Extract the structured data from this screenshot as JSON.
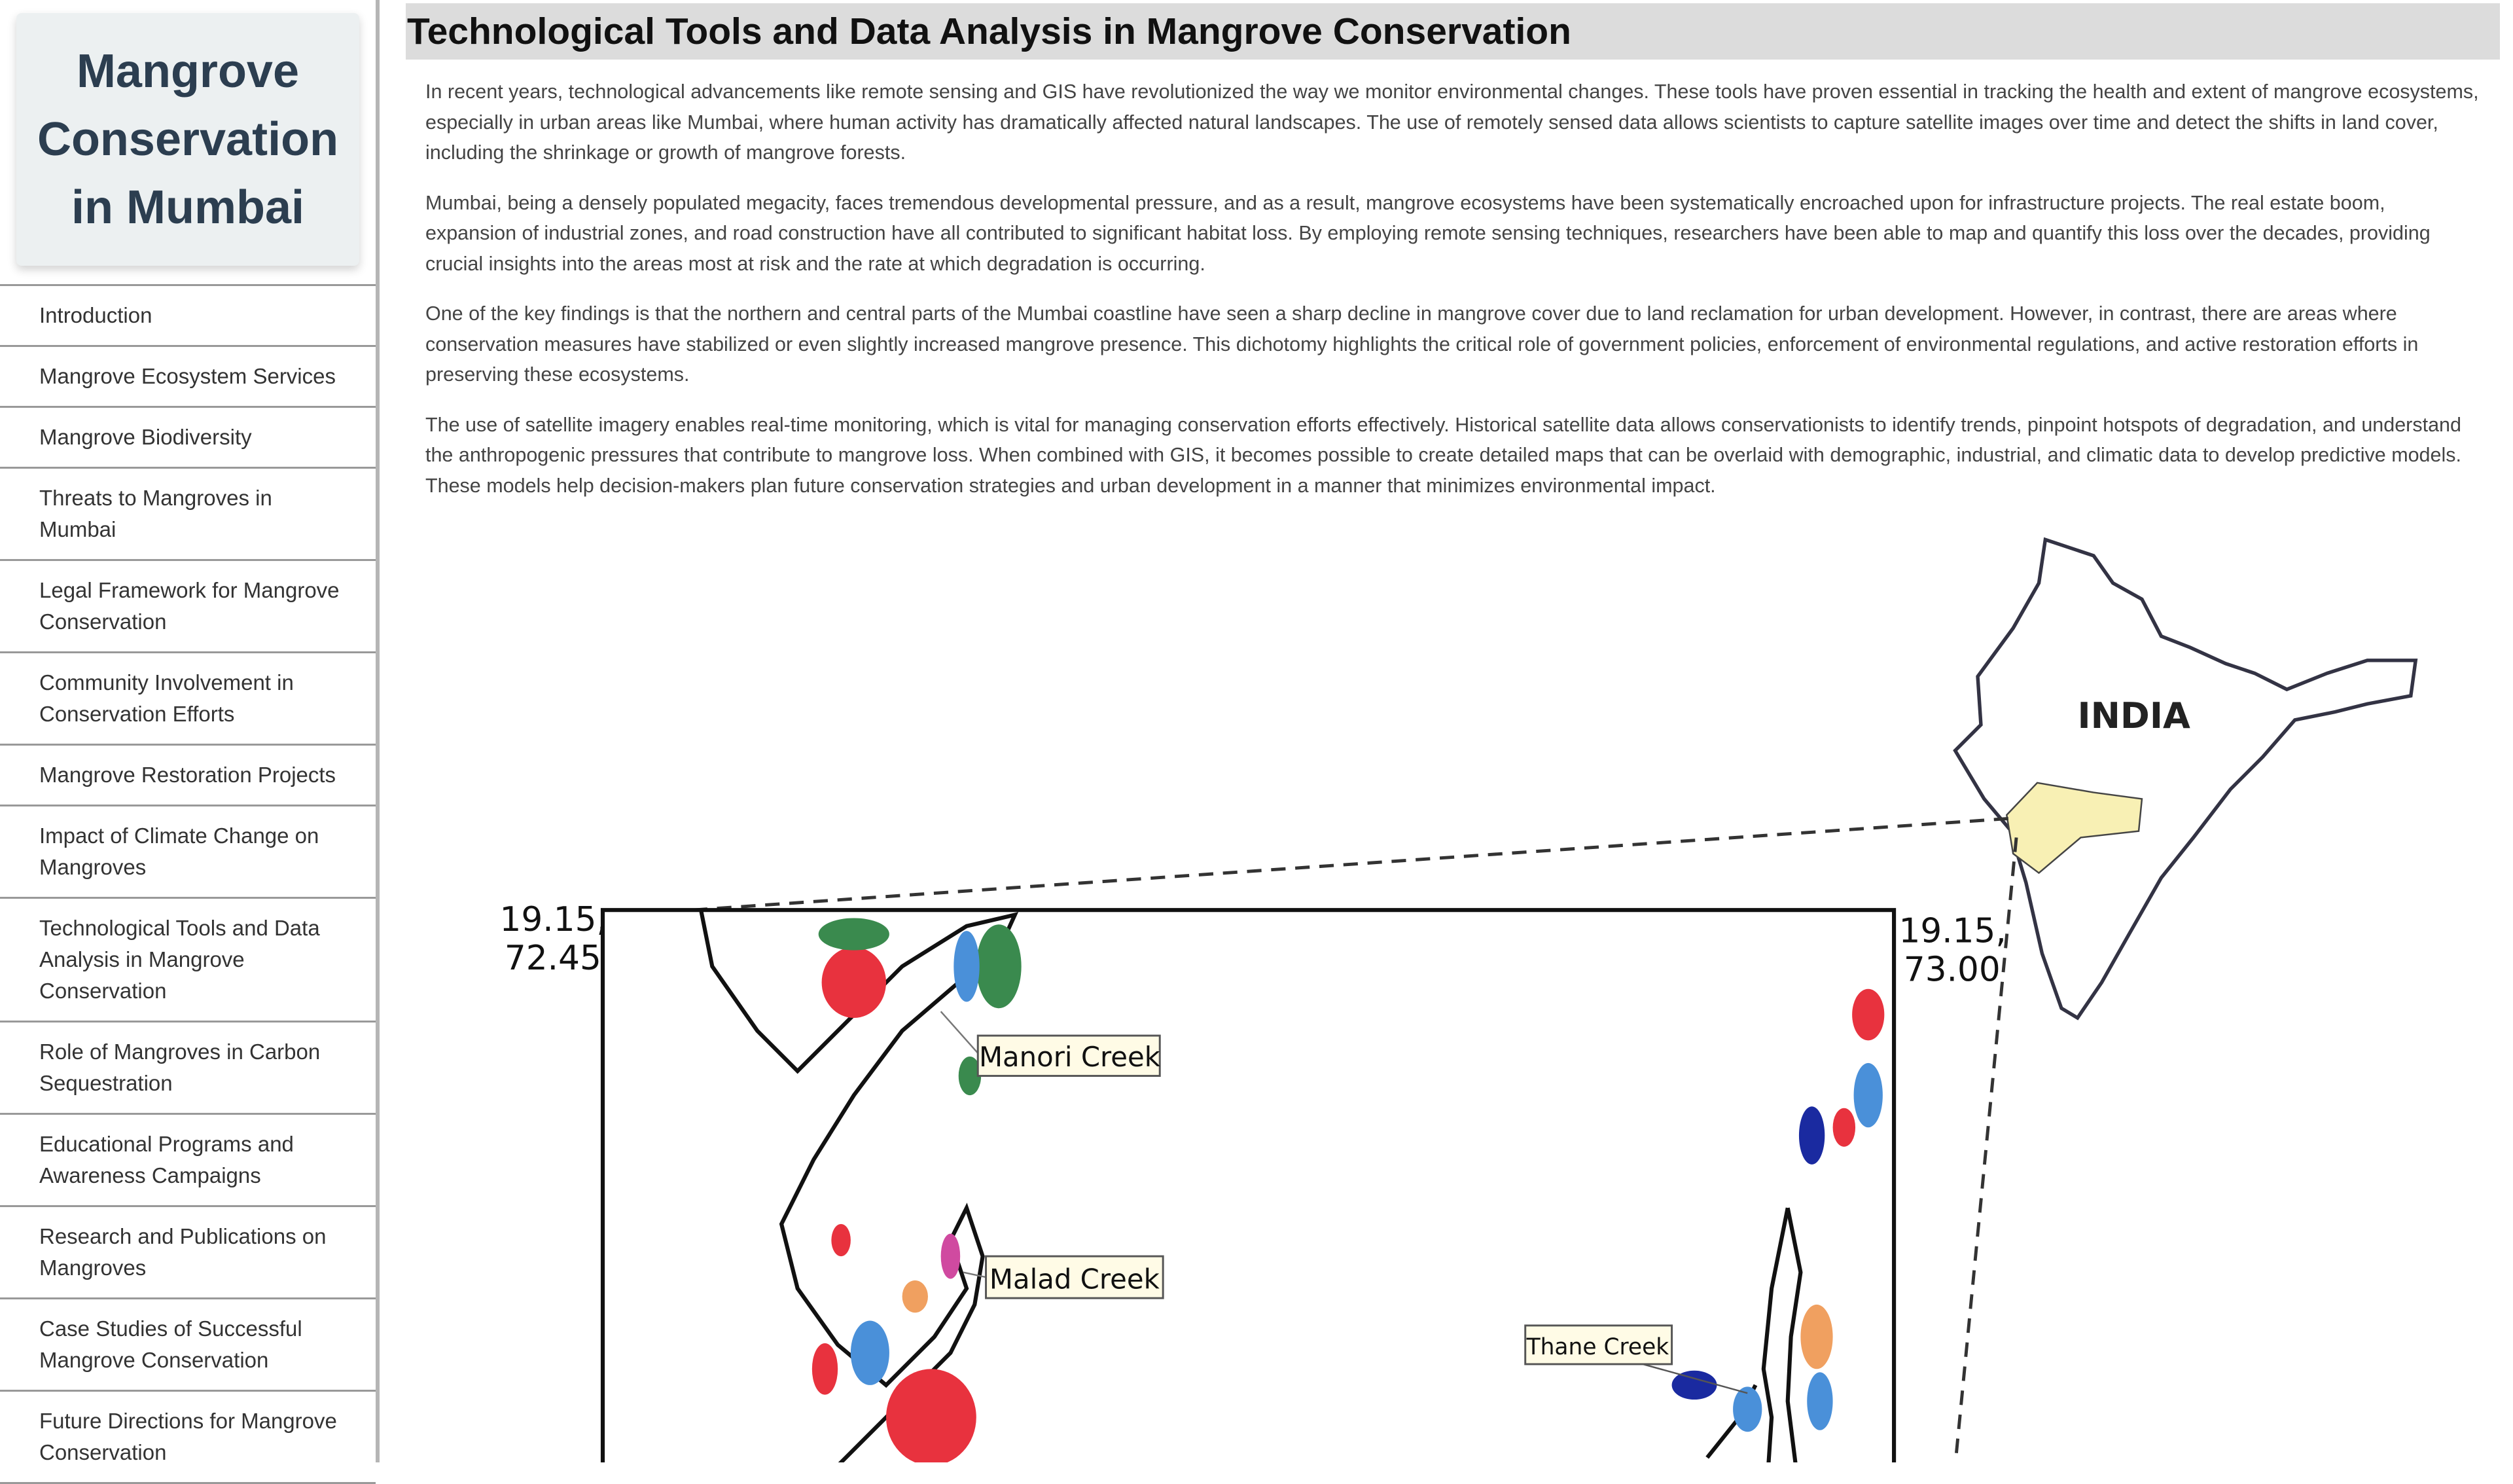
{
  "sidebar": {
    "title": "Mangrove Conservation in Mumbai",
    "nav": [
      "Introduction",
      "Mangrove Ecosystem Services",
      "Mangrove Biodiversity",
      "Threats to Mangroves in Mumbai",
      "Legal Framework for Mangrove Conservation",
      "Community Involvement in Conservation Efforts",
      "Mangrove Restoration Projects",
      "Impact of Climate Change on Mangroves",
      "Technological Tools and Data Analysis in Mangrove Conservation",
      "Role of Mangroves in Carbon Sequestration",
      "Educational Programs and Awareness Campaigns",
      "Research and Publications on Mangroves",
      "Case Studies of Successful Mangrove Conservation",
      "Future Directions for Mangrove Conservation"
    ]
  },
  "main": {
    "heading": "Technological Tools and Data Analysis in Mangrove Conservation",
    "paragraphs": [
      "In recent years, technological advancements like remote sensing and GIS have revolutionized the way we monitor environmental changes. These tools have proven essential in tracking the health and extent of mangrove ecosystems, especially in urban areas like Mumbai, where human activity has dramatically affected natural landscapes. The use of remotely sensed data allows scientists to capture satellite images over time and detect the shifts in land cover, including the shrinkage or growth of mangrove forests.",
      "Mumbai, being a densely populated megacity, faces tremendous developmental pressure, and as a result, mangrove ecosystems have been systematically encroached upon for infrastructure projects. The real estate boom, expansion of industrial zones, and road construction have all contributed to significant habitat loss. By employing remote sensing techniques, researchers have been able to map and quantify this loss over the decades, providing crucial insights into the areas most at risk and the rate at which degradation is occurring.",
      "One of the key findings is that the northern and central parts of the Mumbai coastline have seen a sharp decline in mangrove cover due to land reclamation for urban development. However, in contrast, there are areas where conservation measures have stabilized or even slightly increased mangrove presence. This dichotomy highlights the critical role of government policies, enforcement of environmental regulations, and active restoration efforts in preserving these ecosystems.",
      "The use of satellite imagery enables real-time monitoring, which is vital for managing conservation efforts effectively. Historical satellite data allows conservationists to identify trends, pinpoint hotspots of degradation, and understand the anthropogenic pressures that contribute to mangrove loss. When combined with GIS, it becomes possible to create detailed maps that can be overlaid with demographic, industrial, and climatic data to develop predictive models. These models help decision-makers plan future conservation strategies and urban development in a manner that minimizes environmental impact."
    ],
    "map": {
      "country": "INDIA",
      "creeks": [
        "Manori Creek",
        "Malad Creek",
        "Thane Creek"
      ],
      "top_left": [
        "19.15,",
        "72.45"
      ],
      "top_right": [
        "19.15,",
        "73.00"
      ]
    }
  }
}
